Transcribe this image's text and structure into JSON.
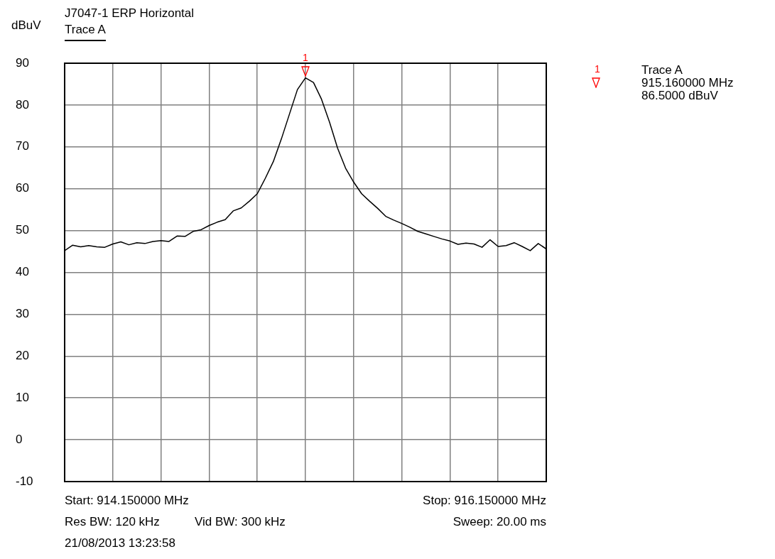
{
  "chart_data": {
    "type": "line",
    "title": "J7047-1 ERP Horizontal",
    "ylabel": "dBuV",
    "legend": "top left",
    "grid": true,
    "marker": "none",
    "line_style": "solid",
    "tick_labels": "y",
    "categories": [
      null,
      null,
      null,
      null,
      null,
      null,
      null,
      null,
      null,
      null,
      null,
      null,
      null,
      null,
      null,
      null,
      null,
      null,
      null,
      null,
      null,
      null,
      null,
      null,
      null,
      null,
      null,
      null,
      null,
      null,
      null,
      null,
      null,
      null,
      null,
      null,
      null,
      null,
      null,
      null,
      null,
      null,
      null,
      null,
      null,
      null,
      null,
      null,
      null,
      null,
      null,
      null,
      null,
      null,
      null,
      null,
      null,
      null,
      null,
      null,
      null
    ],
    "ylim": [
      -10,
      90
    ],
    "yticks": [
      -10,
      0,
      10,
      20,
      30,
      40,
      50,
      60,
      70,
      80,
      90
    ],
    "series": [
      {
        "name": "Trace A",
        "color": "#000000",
        "values": [
          45.2,
          46.5,
          46.1,
          46.4,
          46.1,
          46.0,
          46.8,
          47.3,
          46.6,
          47.1,
          46.9,
          47.4,
          47.6,
          47.4,
          48.7,
          48.6,
          49.8,
          50.2,
          51.2,
          52.0,
          52.6,
          54.7,
          55.4,
          57.0,
          58.8,
          62.5,
          66.5,
          71.9,
          77.8,
          83.7,
          86.5,
          85.4,
          81.4,
          75.9,
          69.7,
          64.9,
          61.6,
          58.8,
          57.0,
          55.3,
          53.4,
          52.5,
          51.7,
          50.8,
          49.8,
          49.2,
          48.6,
          48.0,
          47.5,
          46.7,
          47.0,
          46.8,
          46.0,
          47.8,
          46.2,
          46.4,
          47.1,
          46.2,
          45.2,
          46.9,
          45.6
        ]
      }
    ],
    "annotations": [
      "1",
      "Start: 914.150000 MHz",
      "Stop: 916.150000 MHz",
      "Res BW: 120 kHz",
      "Vid BW: 300 kHz",
      "Sweep: 20.00 ms",
      "21/08/2013 13:23:58",
      "1",
      "Trace A",
      "915.160000 MHz",
      "86.5000 dBuV"
    ]
  }
}
